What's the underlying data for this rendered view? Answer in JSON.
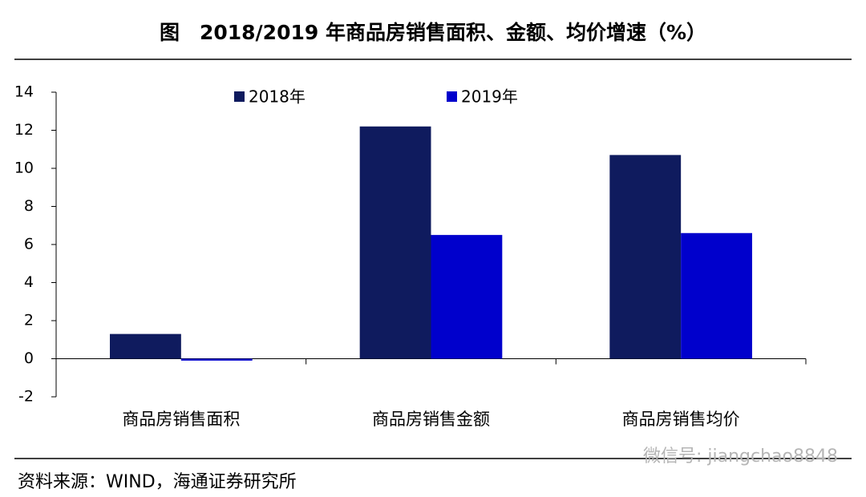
{
  "chart_data": {
    "type": "bar",
    "title": "图　2018/2019 年商品房销售面积、金额、均价增速（%）",
    "categories": [
      "商品房销售面积",
      "商品房销售金额",
      "商品房销售均价"
    ],
    "series": [
      {
        "name": "2018年",
        "color": "#0f1b5e",
        "values": [
          1.3,
          12.2,
          10.7
        ]
      },
      {
        "name": "2019年",
        "color": "#0000cc",
        "values": [
          -0.1,
          6.5,
          6.6
        ]
      }
    ],
    "ylim": [
      -2,
      14
    ],
    "yticks": [
      -2,
      0,
      2,
      4,
      6,
      8,
      10,
      12,
      14
    ],
    "grid": false
  },
  "source": "资料来源：WIND，海通证券研究所",
  "watermark": "微信号: jiangchao8848"
}
